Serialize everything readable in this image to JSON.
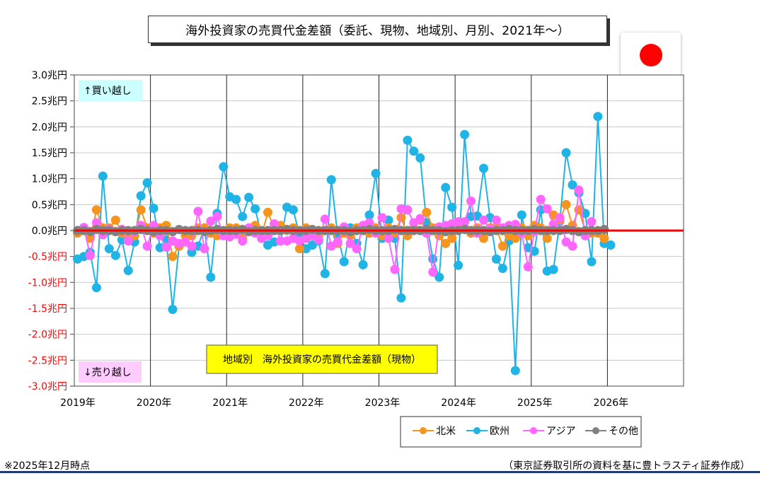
{
  "header": {
    "title": "海外投資家の売買代金差額（委託、現物、地域別、月別、2021年〜）"
  },
  "flag": {
    "country": "Japan",
    "sun_color": "#ff0000"
  },
  "footer": {
    "note": "※2025年12月時点",
    "source": "（東京証券取引所の資料を基に豊トラスティ証券作成）"
  },
  "colors": {
    "north_america": "#f7941d",
    "europe": "#1fb3e6",
    "asia": "#ff66ff",
    "other": "#808080",
    "zero_line": "#ff0000",
    "negative_tick": "#ff0000",
    "buy_box": "#ccffff",
    "sell_box": "#ffccff",
    "chart_label_box": "#ffff00"
  },
  "chart_data": {
    "type": "line",
    "title": "地域別　海外投資家の売買代金差額（現物）",
    "ylabel": "",
    "xlabel": "",
    "ylim": [
      -3.0,
      3.0
    ],
    "xlim": [
      2019.0,
      2027.0
    ],
    "grid": true,
    "legend_position": "bottom-right",
    "annotations": {
      "buy": "↑買い越し",
      "sell": "↓売り越し"
    },
    "y_ticks": [
      "3.0兆円",
      "2.5兆円",
      "2.0兆円",
      "1.5兆円",
      "1.0兆円",
      "0.5兆円",
      "0.0兆円",
      "-0.5兆円",
      "-1.0兆円",
      "-1.5兆円",
      "-2.0兆円",
      "-2.5兆円",
      "-3.0兆円"
    ],
    "x_ticks": [
      "2019年",
      "2020年",
      "2021年",
      "2022年",
      "2023年",
      "2024年",
      "2025年",
      "2026年"
    ],
    "start_year": 2019,
    "series": [
      {
        "name": "北米",
        "values": [
          -0.05,
          0.0,
          -0.15,
          0.4,
          0.05,
          0.05,
          0.2,
          -0.05,
          -0.15,
          -0.1,
          0.4,
          0.05,
          -0.05,
          0.05,
          0.1,
          -0.5,
          -0.3,
          -0.1,
          -0.1,
          0.05,
          0.05,
          -0.05,
          -0.1,
          -0.05,
          0.05,
          0.05,
          -0.15,
          0.05,
          0.1,
          -0.1,
          0.35,
          0.05,
          0.1,
          0.0,
          0.05,
          -0.35,
          0.05,
          -0.05,
          -0.1,
          0.0,
          0.05,
          -0.25,
          -0.05,
          -0.1,
          0.05,
          0.05,
          -0.05,
          0.05,
          -0.1,
          0.05,
          -0.05,
          0.25,
          -0.1,
          0.05,
          0.2,
          0.35,
          0.05,
          -0.1,
          -0.25,
          -0.15,
          0.1,
          0.05,
          -0.05,
          0.05,
          -0.15,
          0.05,
          0.05,
          -0.3,
          -0.1,
          -0.15,
          0.05,
          -0.1,
          0.1,
          0.05,
          -0.15,
          0.3,
          0.2,
          0.5,
          0.1,
          0.4,
          0.0,
          -0.05,
          -0.05,
          -0.15
        ]
      },
      {
        "name": "欧州",
        "values": [
          -0.55,
          -0.5,
          -0.42,
          -1.1,
          1.05,
          -0.35,
          -0.48,
          -0.18,
          -0.77,
          -0.22,
          0.67,
          0.92,
          0.43,
          -0.33,
          -0.18,
          -1.52,
          -0.3,
          -0.05,
          -0.42,
          -0.3,
          0.05,
          -0.9,
          0.33,
          1.23,
          0.65,
          0.6,
          0.27,
          0.64,
          0.42,
          -0.1,
          -0.28,
          -0.22,
          -0.2,
          0.45,
          0.4,
          -0.1,
          -0.35,
          -0.28,
          -0.2,
          -0.83,
          0.98,
          -0.1,
          -0.6,
          0.05,
          -0.25,
          -0.66,
          0.3,
          1.1,
          -0.15,
          0.2,
          -0.15,
          -1.3,
          1.74,
          1.53,
          1.4,
          0.15,
          -0.55,
          -0.9,
          0.83,
          0.45,
          -0.67,
          1.85,
          0.27,
          0.28,
          1.2,
          0.25,
          -0.55,
          -0.73,
          -0.2,
          -2.7,
          0.3,
          -0.33,
          -0.4,
          0.4,
          -0.78,
          -0.75,
          0.18,
          1.5,
          0.88,
          0.73,
          0.33,
          -0.6,
          2.2,
          -0.25,
          -0.28
        ]
      },
      {
        "name": "アジア",
        "values": [
          0.0,
          0.06,
          -0.48,
          0.15,
          -0.08,
          0.02,
          -0.02,
          0.02,
          -0.2,
          -0.02,
          0.1,
          -0.3,
          0.1,
          -0.1,
          -0.32,
          -0.2,
          -0.25,
          -0.22,
          -0.3,
          0.37,
          -0.35,
          0.18,
          0.27,
          -0.1,
          -0.12,
          -0.07,
          -0.2,
          0.05,
          -0.05,
          -0.15,
          -0.1,
          0.13,
          -0.2,
          -0.2,
          -0.15,
          -0.2,
          -0.15,
          -0.1,
          -0.18,
          0.22,
          -0.3,
          -0.22,
          0.07,
          -0.25,
          -0.35,
          0.1,
          0.15,
          -0.05,
          0.25,
          -0.15,
          -0.75,
          0.42,
          0.4,
          0.15,
          0.23,
          -0.05,
          -0.8,
          0.07,
          0.1,
          0.13,
          0.17,
          0.17,
          0.57,
          -0.05,
          0.2,
          0.02,
          0.2,
          0.05,
          0.1,
          0.12,
          -0.05,
          -0.7,
          -0.02,
          0.6,
          0.42,
          0.12,
          0.25,
          -0.22,
          -0.3,
          0.78,
          -0.1,
          0.17
        ]
      },
      {
        "name": "その他",
        "values": [
          0.0,
          0.0,
          -0.02,
          0.02,
          0.0,
          0.0,
          -0.02,
          0.0,
          0.0,
          0.0,
          0.02,
          0.0,
          -0.02,
          0.0,
          0.0,
          -0.02,
          0.02,
          0.0,
          0.0,
          0.0,
          -0.02,
          0.0,
          0.02,
          0.0,
          0.0,
          0.0,
          0.02,
          -0.02,
          0.0,
          0.0,
          0.0,
          0.0,
          0.0,
          0.02,
          0.0,
          0.0,
          0.0,
          0.02,
          0.0,
          0.0,
          0.0,
          0.0,
          0.0,
          -0.02,
          0.0,
          0.0,
          0.02,
          0.0,
          0.0,
          0.0,
          0.02,
          0.0,
          0.0,
          0.0,
          0.0,
          0.02,
          0.0,
          0.0,
          -0.02,
          0.0,
          0.0,
          0.02,
          0.0,
          0.0,
          0.0,
          -0.02,
          0.0,
          0.0,
          0.02,
          0.0,
          0.0,
          0.0,
          0.02,
          0.0,
          0.0,
          0.0,
          0.0,
          0.02,
          0.0,
          -0.02,
          0.0,
          0.0,
          0.0,
          0.02
        ]
      }
    ]
  }
}
